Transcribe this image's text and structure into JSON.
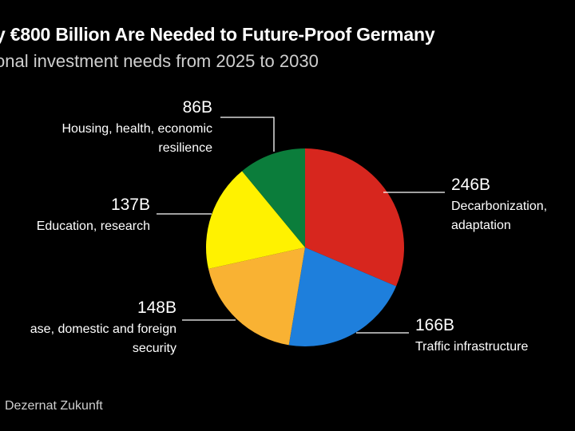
{
  "chart_data": {
    "type": "pie",
    "title": "y €800 Billion Are Needed to Future-Proof Germany",
    "subtitle": "onal investment needs from 2025 to 2030",
    "source": "Dezernat Zukunft",
    "units": "billion euros",
    "slices": [
      {
        "value": 246,
        "value_label": "246B",
        "label_lines": [
          "Decarbonization,",
          "adaptation"
        ],
        "color": "#d7261e"
      },
      {
        "value": 166,
        "value_label": "166B",
        "label_lines": [
          "Traffic infrastructure"
        ],
        "color": "#1e7fdc"
      },
      {
        "value": 148,
        "value_label": "148B",
        "label_lines": [
          "ase, domestic and foreign",
          "security"
        ],
        "color": "#f9b233"
      },
      {
        "value": 137,
        "value_label": "137B",
        "label_lines": [
          "Education, research"
        ],
        "color": "#fff200"
      },
      {
        "value": 86,
        "value_label": "86B",
        "label_lines": [
          "Housing, health, economic",
          "resilience"
        ],
        "color": "#0b7d3b"
      }
    ]
  }
}
